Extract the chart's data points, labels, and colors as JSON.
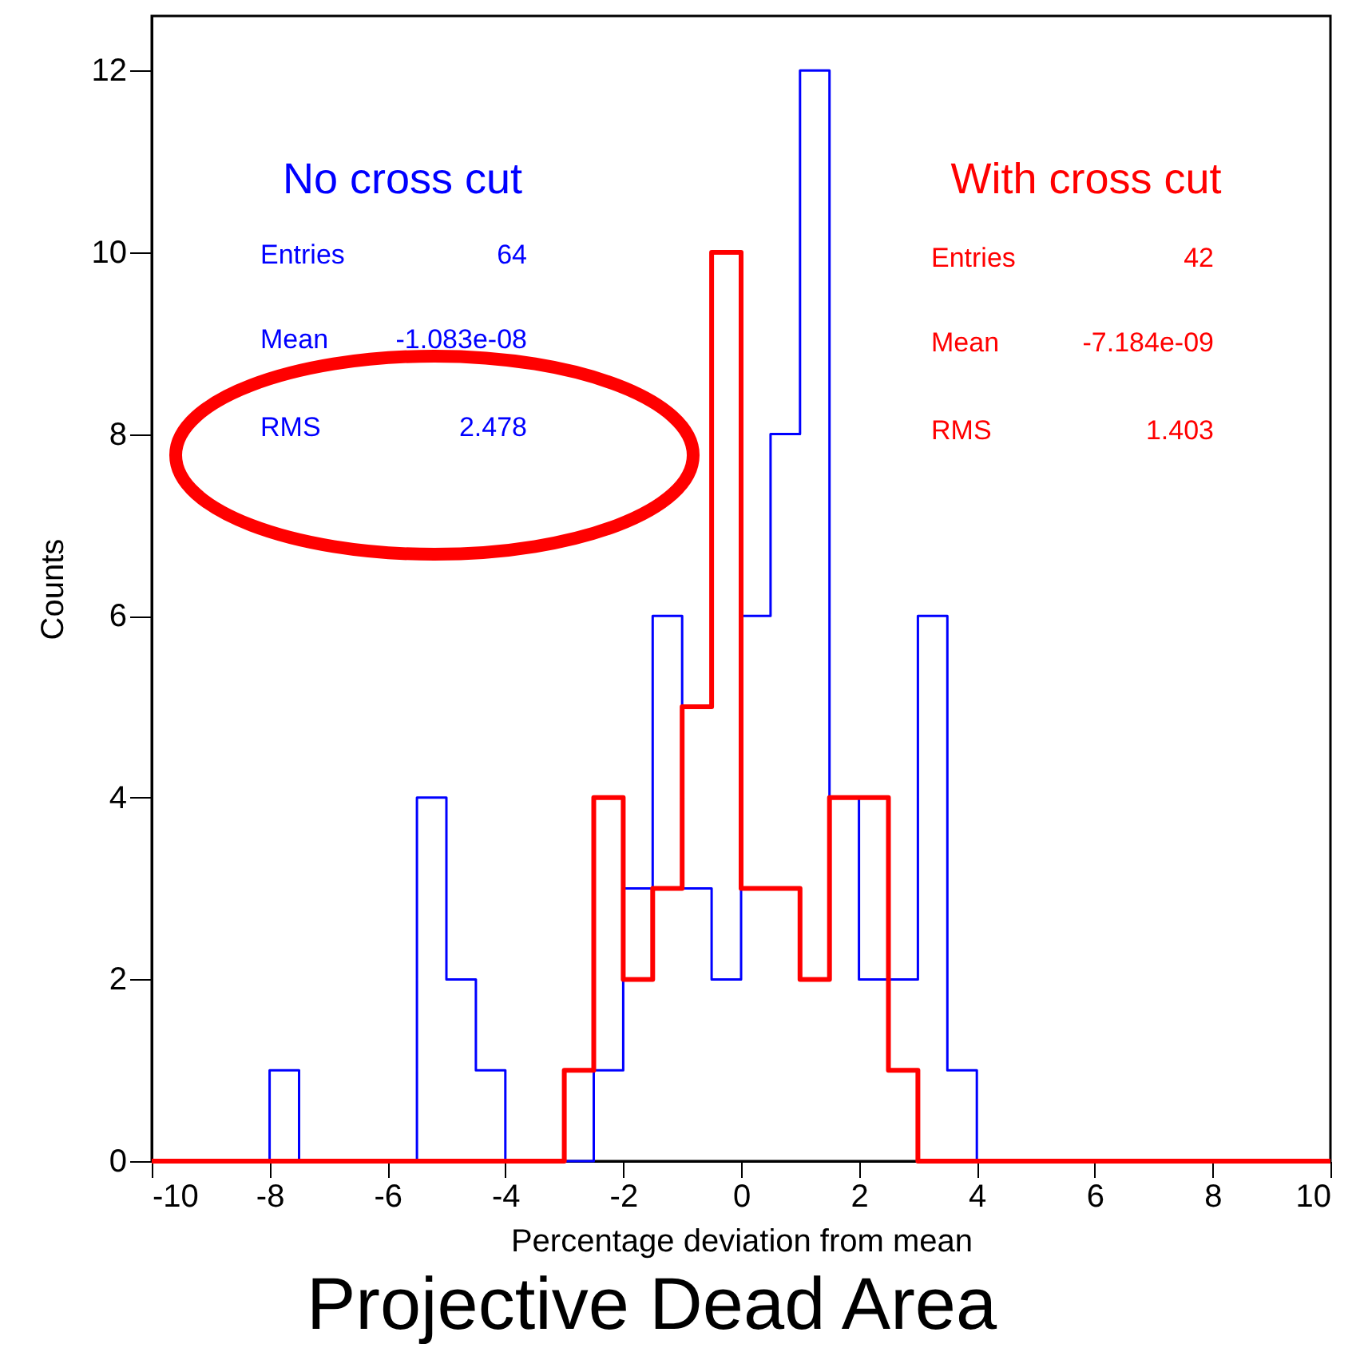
{
  "chart_data": {
    "type": "histogram",
    "xlabel": "Percentage deviation from mean",
    "ylabel": "Counts",
    "bins": [
      -10,
      -9.5,
      -9,
      -8.5,
      -8,
      -7.5,
      -7,
      -6.5,
      -6,
      -5.5,
      -5,
      -4.5,
      -4,
      -3.5,
      -3,
      -2.5,
      -2,
      -1.5,
      -1,
      -0.5,
      0,
      0.5,
      1,
      1.5,
      2,
      2.5,
      3,
      3.5,
      4,
      4.5,
      5,
      5.5,
      6,
      6.5,
      7,
      7.5,
      8,
      8.5,
      9,
      9.5,
      10
    ],
    "series": [
      {
        "name": "No cross cut",
        "color": "#0000ff",
        "values": [
          0,
          0,
          0,
          0,
          1,
          0,
          0,
          0,
          0,
          4,
          2,
          1,
          0,
          0,
          0,
          1,
          3,
          6,
          3,
          2,
          6,
          8,
          12,
          4,
          2,
          2,
          6,
          1,
          0,
          0,
          0,
          0,
          0,
          0,
          0,
          0,
          0,
          0,
          0,
          0
        ]
      },
      {
        "name": "With cross cut",
        "color": "#ff0000",
        "values": [
          0,
          0,
          0,
          0,
          0,
          0,
          0,
          0,
          0,
          0,
          0,
          0,
          0,
          0,
          1,
          4,
          2,
          3,
          5,
          10,
          3,
          3,
          2,
          4,
          4,
          1,
          0,
          0,
          0,
          0,
          0,
          0,
          0,
          0,
          0,
          0,
          0,
          0,
          0,
          0
        ]
      }
    ],
    "xlim": [
      -10,
      10
    ],
    "xticks": [
      -10,
      -8,
      -6,
      -4,
      -2,
      0,
      2,
      4,
      6,
      8,
      10
    ],
    "ylim": [
      0,
      12.6
    ],
    "yticks": [
      0,
      2,
      4,
      6,
      8,
      10,
      12
    ],
    "grid": false,
    "annotations": [
      "Entries",
      "64",
      "Mean",
      "-1.083e-08",
      "RMS",
      "2.478",
      "Entries",
      "42",
      "Mean",
      "-7.184e-09",
      "RMS",
      "1.403",
      "Projective Dead Area"
    ]
  }
}
